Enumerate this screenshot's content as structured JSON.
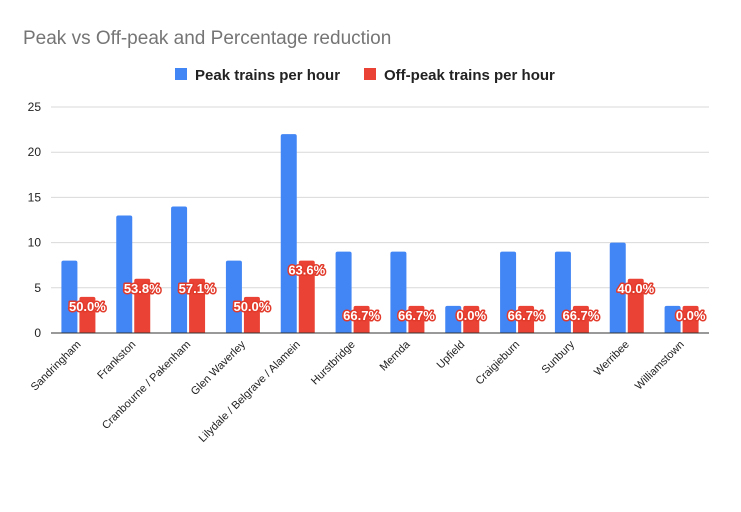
{
  "chart_data": {
    "type": "bar",
    "title": "Peak vs Off-peak and Percentage reduction",
    "categories": [
      "Sandringham",
      "Frankston",
      "Cranbourne / Pakenham",
      "Glen Waverley",
      "Lilydale / Belgrave / Alamein",
      "Hurstbridge",
      "Mernda",
      "Upfield",
      "Craigieburn",
      "Sunbury",
      "Werribee",
      "Williamstown"
    ],
    "series": [
      {
        "name": "Peak trains per hour",
        "color": "#4285f4",
        "values": [
          8,
          13,
          14,
          8,
          22,
          9,
          9,
          3,
          9,
          9,
          10,
          3
        ]
      },
      {
        "name": "Off-peak trains per hour",
        "color": "#ea4335",
        "values": [
          4,
          6,
          6,
          4,
          8,
          3,
          3,
          3,
          3,
          3,
          6,
          3
        ]
      }
    ],
    "data_labels": [
      "50.0%",
      "53.8%",
      "57.1%",
      "50.0%",
      "63.6%",
      "66.7%",
      "66.7%",
      "0.0%",
      "66.7%",
      "66.7%",
      "40.0%",
      "0.0%"
    ],
    "yticks": [
      "0",
      "5",
      "10",
      "15",
      "20",
      "25"
    ],
    "ylim": [
      0,
      25
    ],
    "xlabel": "",
    "ylabel": "",
    "legend_position": "top",
    "grid": true,
    "grid_color": "#d9d9d9",
    "axis_color": "#333333"
  }
}
